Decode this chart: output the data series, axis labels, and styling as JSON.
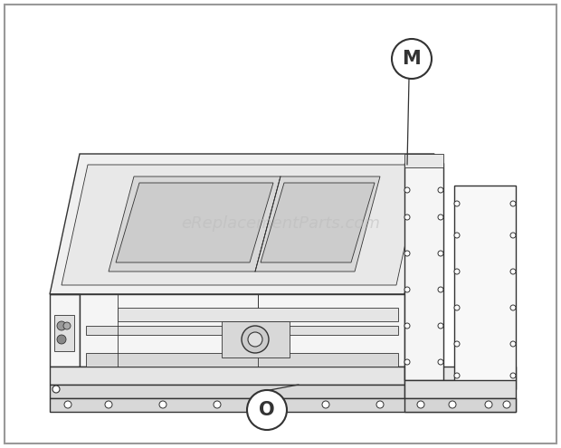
{
  "background_color": "#ffffff",
  "line_color": "#333333",
  "line_color_light": "#666666",
  "fill_white": "#ffffff",
  "fill_light": "#f5f5f5",
  "fill_mid": "#e8e8e8",
  "fill_dark": "#d0d0d0",
  "label_M": "M",
  "label_O": "O",
  "watermark_text": "eReplacementParts.com",
  "watermark_color": "#bbbbbb",
  "watermark_fontsize": 13,
  "figsize": [
    6.2,
    4.95
  ],
  "dpi": 100,
  "lw_main": 1.0,
  "lw_thin": 0.6,
  "lw_thick": 1.4
}
